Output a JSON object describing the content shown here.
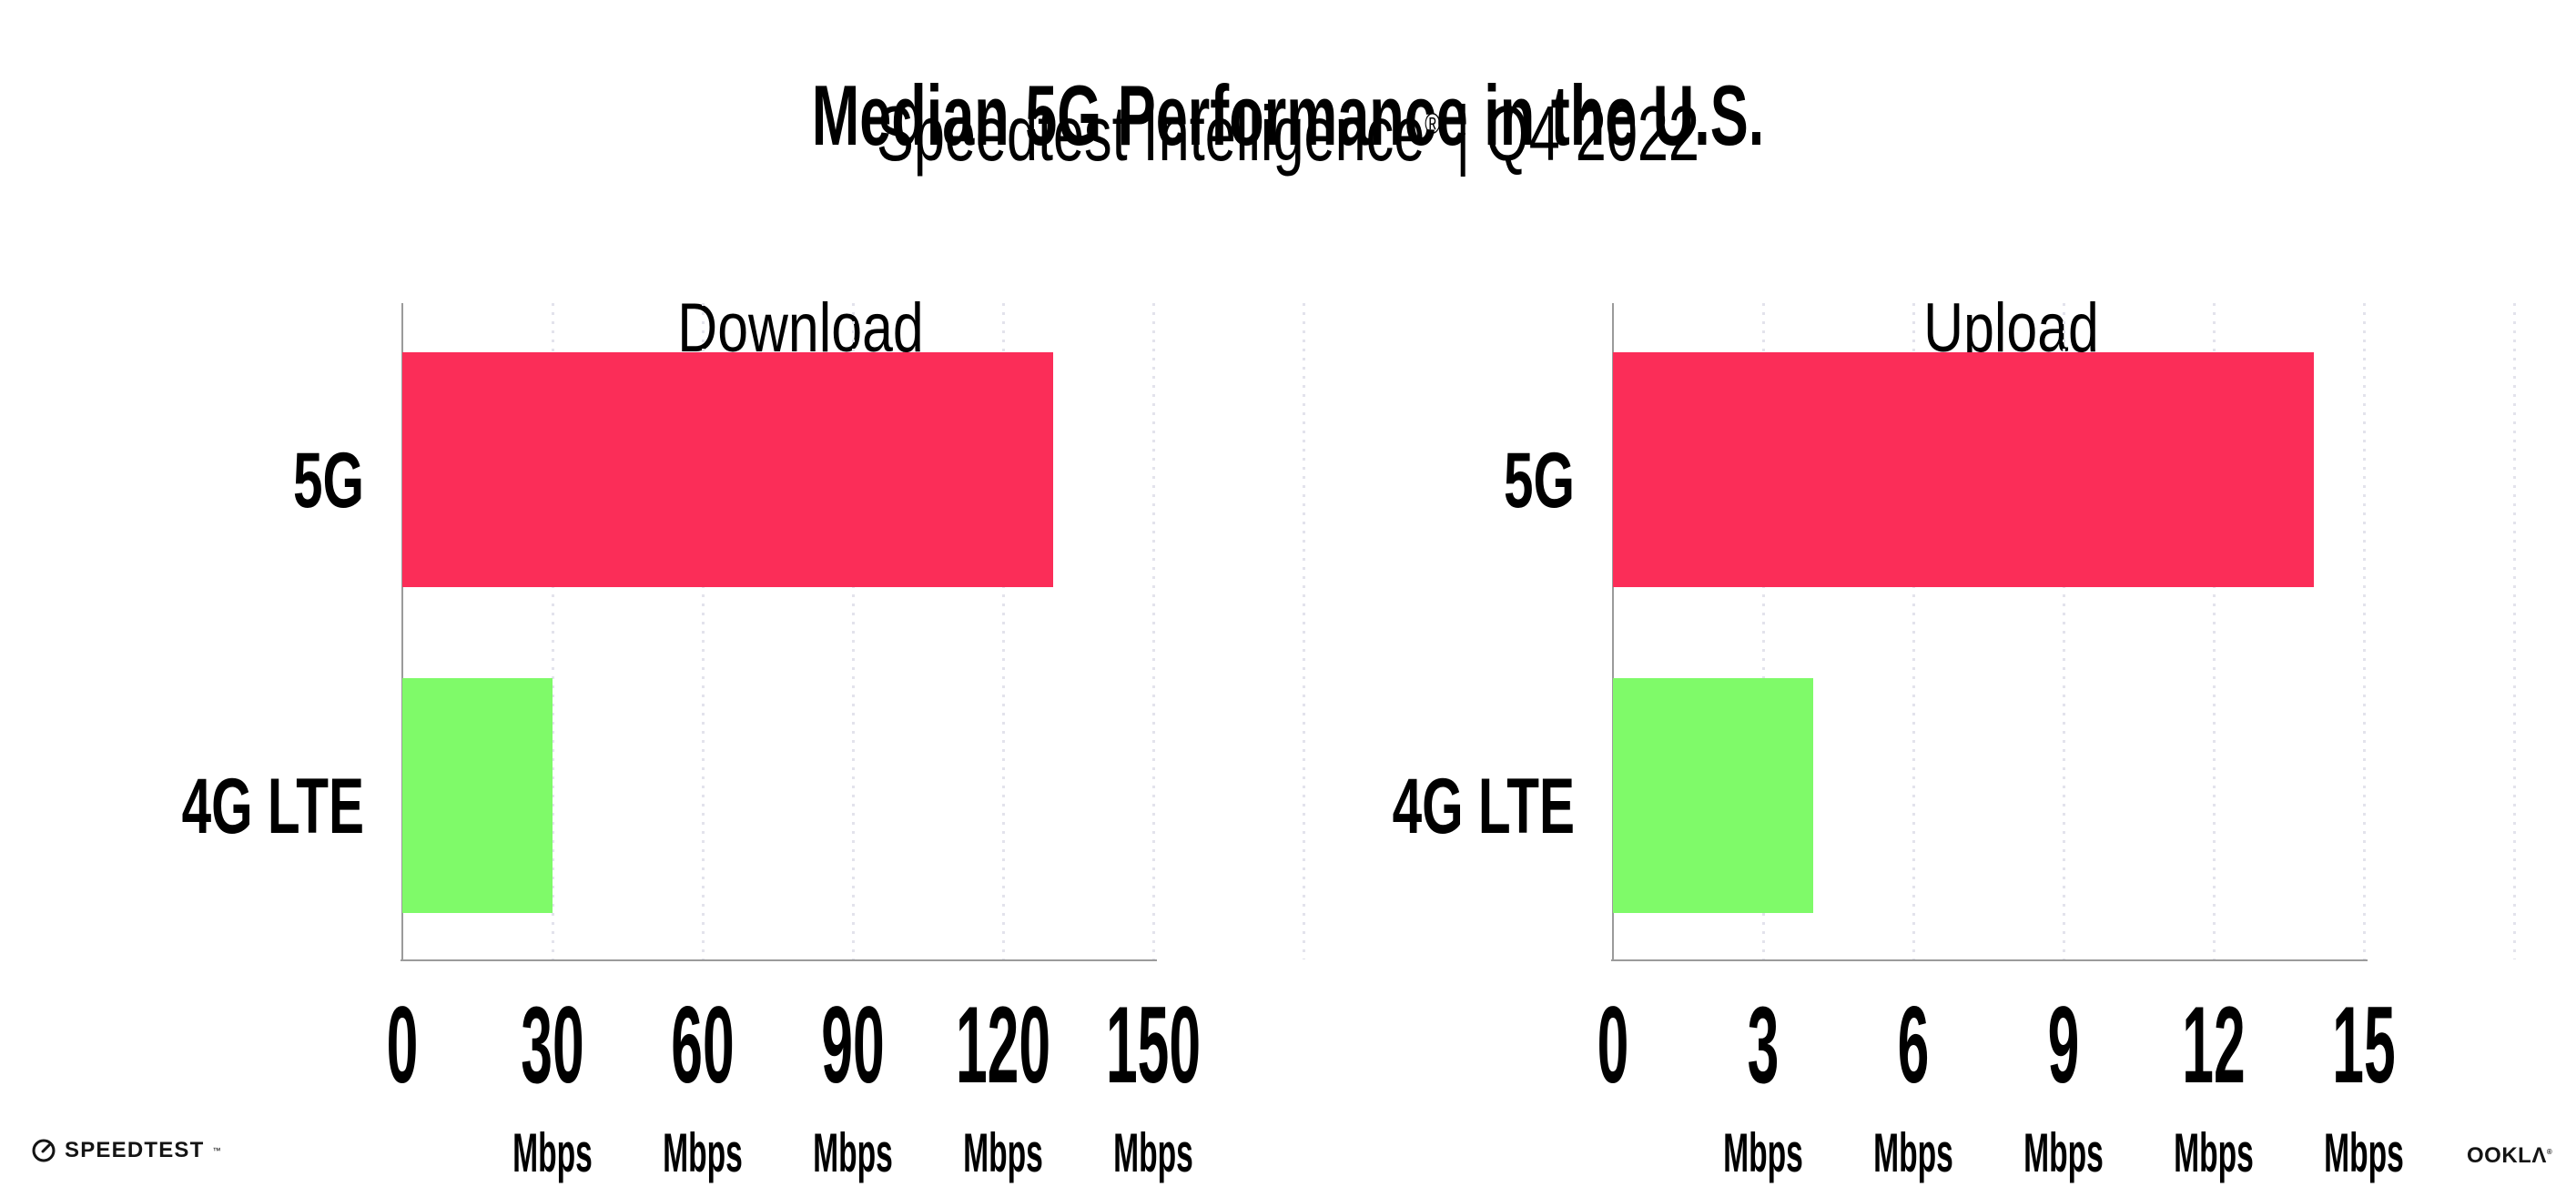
{
  "header": {
    "title": "Median 5G Performance in the U.S.",
    "subtitle": {
      "brand": "Speedtest Intelligence",
      "reg": "®",
      "rest": " | Q4 2022"
    }
  },
  "colors": {
    "bar_5g": "#FB2D58",
    "bar_4g_lte": "#7FFA69",
    "axis": "#9B9B9B",
    "grid": "#E3E3EC",
    "text": "#000000",
    "footer_ink": "#141414"
  },
  "chart_data": [
    {
      "type": "bar",
      "orientation": "horizontal",
      "title": "Download",
      "categories": [
        "5G",
        "4G LTE"
      ],
      "values": [
        130,
        30
      ],
      "bar_colors": [
        "#FB2D58",
        "#7FFA69"
      ],
      "unit": "Mbps",
      "xlabel": "",
      "ylabel": "",
      "xlim": [
        0,
        150
      ],
      "xticks": [
        0,
        30,
        60,
        90,
        120,
        150
      ],
      "grid": {
        "style": "dotted-vertical",
        "extra_line_at": 180
      },
      "legend": "none"
    },
    {
      "type": "bar",
      "orientation": "horizontal",
      "title": "Upload",
      "categories": [
        "5G",
        "4G LTE"
      ],
      "values": [
        14,
        4
      ],
      "bar_colors": [
        "#FB2D58",
        "#7FFA69"
      ],
      "unit": "Mbps",
      "xlabel": "",
      "ylabel": "",
      "xlim": [
        0,
        15
      ],
      "xticks": [
        0,
        3,
        6,
        9,
        12,
        15
      ],
      "grid": {
        "style": "dotted-vertical",
        "extra_line_at": 18
      },
      "legend": "none"
    }
  ],
  "footer": {
    "speedtest": "SPEEDTEST",
    "speedtest_tm": "™",
    "ookla": "OOKLΛ",
    "ookla_reg": "®"
  }
}
